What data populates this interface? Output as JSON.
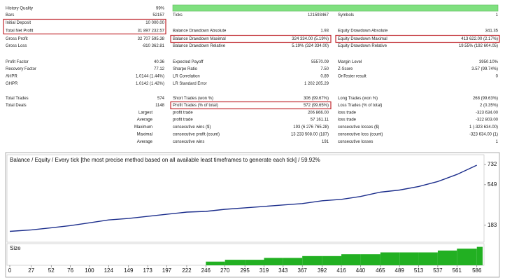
{
  "report": {
    "rows": [
      [
        "History Quality",
        "99%"
      ],
      [
        "Bars",
        "52157",
        "Ticks",
        "121593467",
        "Symbols",
        "1"
      ],
      [
        "Initial Deposit",
        "10 000.00"
      ],
      [
        "Total Net Profit",
        "31 897 232.57",
        "Balance Drawdown Absolute",
        "1.93",
        "Equity Drawdown Absolute",
        "341.35"
      ],
      [
        "Gross Profit",
        "32 707 595.38",
        "Balance Drawdown Maximal",
        "324 334.00 (5.19%)",
        "Equity Drawdown Maximal",
        "413 622.00 (2.17%)"
      ],
      [
        "Gross Loss",
        "-810 362.81",
        "Balance Drawdown Relative",
        "5.19% (324 334.00)",
        "Equity Drawdown Relative",
        "19.55% (192 604.05)"
      ],
      [
        "Profit Factor",
        "40.36",
        "Expected Payoff",
        "55570.09",
        "Margin Level",
        "3950.10%"
      ],
      [
        "Recovery Factor",
        "77.12",
        "Sharpe Ratio",
        "7.50",
        "Z-Score",
        "3.57 (99.74%)"
      ],
      [
        "AHPR",
        "1.0144 (1.44%)",
        "LR Correlation",
        "0.89",
        "OnTester result",
        "0"
      ],
      [
        "GHPR",
        "1.0142 (1.42%)",
        "LR Standard Error",
        "1 202 205.29"
      ],
      [
        "Total Trades",
        "574",
        "Short Trades (won %)",
        "306 (99.67%)",
        "Long Trades (won %)",
        "268 (99.63%)"
      ],
      [
        "Total Deals",
        "1148",
        "Profit Trades (% of total)",
        "572 (99.65%)",
        "Loss Trades (% of total)",
        "2 (0.35%)"
      ],
      [
        "Largest",
        "profit trade",
        "206 866.00",
        "loss trade",
        "-323 634.00"
      ],
      [
        "Average",
        "profit trade",
        "57 161.11",
        "loss trade",
        "-322 803.00"
      ],
      [
        "Maximum",
        "consecutive wins ($)",
        "193 (6 276 765.28)",
        "consecutive losses ($)",
        "1 (-323 634.00)"
      ],
      [
        "Maximal",
        "consecutive profit (count)",
        "13 233 508.00 (187)",
        "consecutive loss (count)",
        "-323 634.00 (1)"
      ],
      [
        "Average",
        "consecutive wins",
        "191",
        "consecutive losses",
        "1"
      ]
    ]
  },
  "chart_data": {
    "type": "line",
    "title": "Balance / Equity / Every tick [the most precise method based on all available least timeframes to generate each tick] / 59.92%",
    "x": [
      0,
      27,
      52,
      76,
      100,
      124,
      149,
      173,
      197,
      222,
      246,
      270,
      295,
      319,
      343,
      367,
      392,
      416,
      440,
      465,
      489,
      513,
      537,
      561,
      586
    ],
    "series": [
      {
        "name": "Balance",
        "color": "#1c2e8c",
        "values": [
          128,
          141,
          160,
          180,
          205,
          231,
          244,
          263,
          282,
          302,
          308,
          327,
          340,
          353,
          366,
          379,
          404,
          417,
          443,
          482,
          501,
          533,
          578,
          642,
          725
        ]
      }
    ],
    "xlim": [
      -3.5,
      595
    ],
    "ylim": [
      30,
      820
    ],
    "xticks": [
      0,
      27,
      52,
      76,
      100,
      124,
      149,
      173,
      197,
      222,
      246,
      270,
      295,
      319,
      343,
      367,
      392,
      416,
      440,
      465,
      489,
      513,
      537,
      561,
      586
    ],
    "yticks": [
      183,
      549,
      732
    ],
    "size_chart": {
      "title": "Size",
      "color": "#22b022",
      "ylim": [
        0,
        11
      ],
      "values": [
        0,
        0,
        0,
        0,
        0,
        0,
        0,
        0,
        0,
        0,
        2,
        3,
        3,
        4,
        4,
        5,
        5,
        6,
        6,
        7,
        7,
        7,
        8,
        9,
        10
      ]
    }
  }
}
